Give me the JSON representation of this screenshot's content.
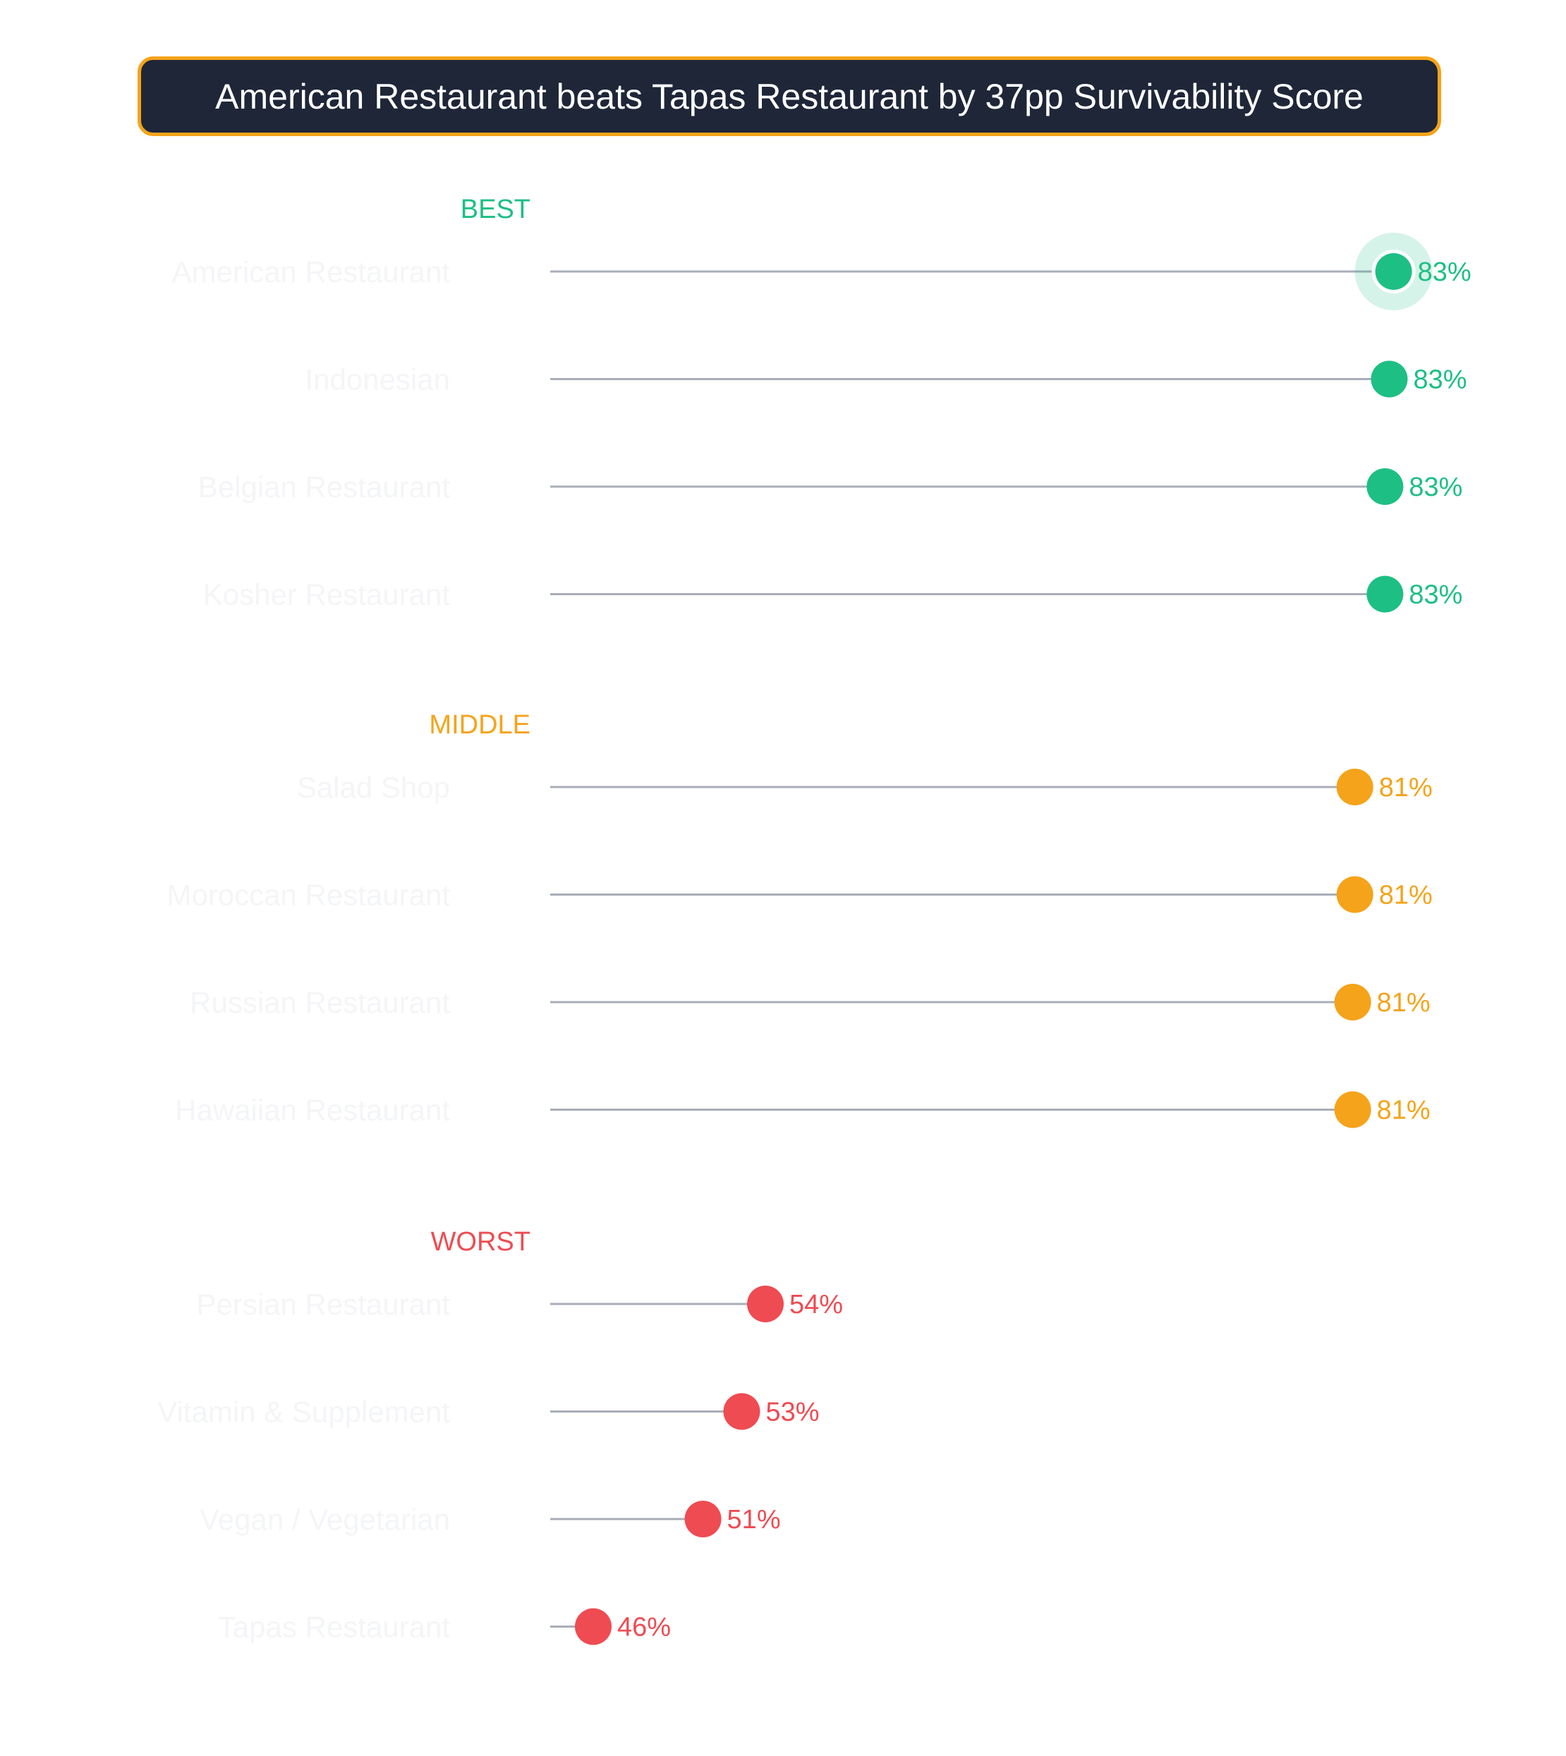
{
  "chart_data": {
    "type": "lollipop",
    "title": "American Restaurant beats Tapas Restaurant by 37pp Survivability Score",
    "value_suffix": "%",
    "highlight": "American Restaurant",
    "colors": {
      "best": "#1dbf85",
      "middle": "#f5a31a",
      "worst": "#ef4b52",
      "stem": "#a9adb9",
      "category_text": "#f4f5f7",
      "title_background": "#1e2638",
      "title_border": "#f5a31a"
    },
    "groups": [
      {
        "name": "BEST",
        "color_key": "best",
        "items": [
          {
            "category": "American Restaurant",
            "value": 83.2,
            "label": "83%"
          },
          {
            "category": "Indonesian",
            "value": 83.0,
            "label": "83%"
          },
          {
            "category": "Belgian Restaurant",
            "value": 82.8,
            "label": "83%"
          },
          {
            "category": "Kosher Restaurant",
            "value": 82.8,
            "label": "83%"
          }
        ]
      },
      {
        "name": "MIDDLE",
        "color_key": "middle",
        "items": [
          {
            "category": "Salad Shop",
            "value": 81.4,
            "label": "81%"
          },
          {
            "category": "Moroccan Restaurant",
            "value": 81.4,
            "label": "81%"
          },
          {
            "category": "Russian Restaurant",
            "value": 81.3,
            "label": "81%"
          },
          {
            "category": "Hawaiian Restaurant",
            "value": 81.3,
            "label": "81%"
          }
        ]
      },
      {
        "name": "WORST",
        "color_key": "worst",
        "items": [
          {
            "category": "Persian Restaurant",
            "value": 54.0,
            "label": "54%"
          },
          {
            "category": "Vitamin & Supplement",
            "value": 52.9,
            "label": "53%"
          },
          {
            "category": "Vegan / Vegetarian",
            "value": 51.1,
            "label": "51%"
          },
          {
            "category": "Tapas Restaurant",
            "value": 46.0,
            "label": "46%"
          }
        ]
      }
    ]
  }
}
